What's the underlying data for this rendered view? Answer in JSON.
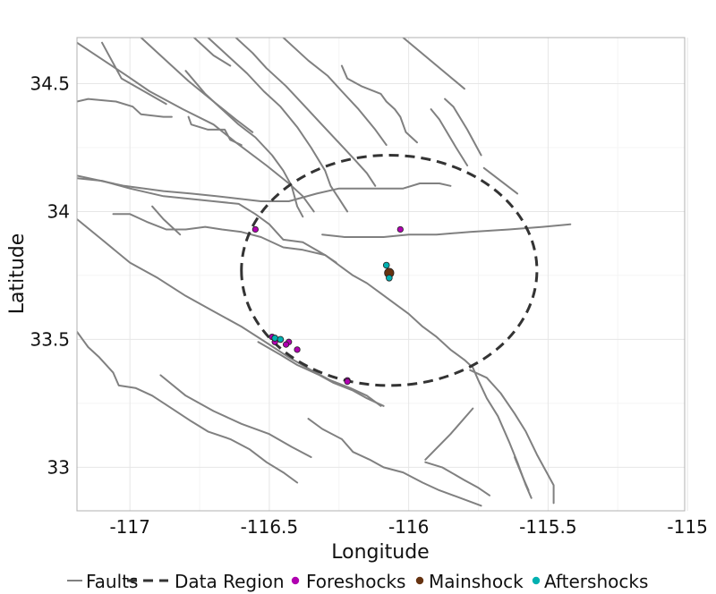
{
  "chart_data": {
    "type": "scatter",
    "title": "",
    "xlabel": "Longitude",
    "ylabel": "Latitude",
    "xlim": [
      -117.19,
      -115.01
    ],
    "ylim": [
      32.83,
      34.68
    ],
    "x_ticks": [
      -117,
      -116.5,
      -116,
      -115.5,
      -115
    ],
    "x_tick_labels": [
      "-117",
      "-116.5",
      "-116",
      "-115.5",
      "-115"
    ],
    "y_ticks": [
      33,
      33.5,
      34,
      34.5
    ],
    "y_tick_labels": [
      "33",
      "33.5",
      "34",
      "34.5"
    ],
    "grid": true,
    "legend_position": "bottom",
    "legend": [
      {
        "label": "Faults",
        "kind": "line",
        "color": "#808080"
      },
      {
        "label": "Data Region",
        "kind": "dashed",
        "color": "#333333"
      },
      {
        "label": "Foreshocks",
        "kind": "point",
        "color": "#b000b0"
      },
      {
        "label": "Mainshock",
        "kind": "point",
        "color": "#663311"
      },
      {
        "label": "Aftershocks",
        "kind": "point",
        "color": "#00b0b0"
      }
    ],
    "data_region": {
      "center": [
        -116.07,
        33.77
      ],
      "radius_lon": 0.53,
      "radius_lat": 0.45
    },
    "faults": [
      [
        [
          -117.19,
          34.66
        ],
        [
          -117.01,
          34.53
        ],
        [
          -116.93,
          34.47
        ],
        [
          -116.81,
          34.4
        ],
        [
          -116.7,
          34.34
        ],
        [
          -116.62,
          34.27
        ],
        [
          -116.51,
          34.18
        ],
        [
          -116.43,
          34.11
        ],
        [
          -116.38,
          34.06
        ],
        [
          -116.34,
          34.0
        ]
      ],
      [
        [
          -117.1,
          34.66
        ],
        [
          -117.03,
          34.52
        ],
        [
          -116.95,
          34.47
        ],
        [
          -116.87,
          34.42
        ]
      ],
      [
        [
          -117.19,
          34.43
        ],
        [
          -117.15,
          34.44
        ],
        [
          -117.05,
          34.43
        ],
        [
          -116.99,
          34.41
        ],
        [
          -116.96,
          34.38
        ],
        [
          -116.88,
          34.37
        ],
        [
          -116.85,
          34.37
        ]
      ],
      [
        [
          -116.96,
          34.68
        ],
        [
          -116.85,
          34.57
        ],
        [
          -116.79,
          34.51
        ],
        [
          -116.7,
          34.43
        ],
        [
          -116.62,
          34.36
        ],
        [
          -116.56,
          34.31
        ]
      ],
      [
        [
          -116.79,
          34.37
        ],
        [
          -116.78,
          34.34
        ],
        [
          -116.72,
          34.32
        ],
        [
          -116.7,
          34.32
        ],
        [
          -116.66,
          34.32
        ],
        [
          -116.64,
          34.28
        ],
        [
          -116.6,
          34.26
        ]
      ],
      [
        [
          -116.8,
          34.55
        ],
        [
          -116.73,
          34.46
        ],
        [
          -116.67,
          34.4
        ],
        [
          -116.61,
          34.34
        ],
        [
          -116.55,
          34.29
        ],
        [
          -116.49,
          34.22
        ],
        [
          -116.45,
          34.16
        ],
        [
          -116.42,
          34.1
        ],
        [
          -116.4,
          34.02
        ],
        [
          -116.38,
          33.98
        ]
      ],
      [
        [
          -116.77,
          34.68
        ],
        [
          -116.7,
          34.61
        ],
        [
          -116.64,
          34.57
        ]
      ],
      [
        [
          -116.72,
          34.68
        ],
        [
          -116.64,
          34.6
        ],
        [
          -116.58,
          34.54
        ],
        [
          -116.52,
          34.47
        ],
        [
          -116.46,
          34.41
        ],
        [
          -116.4,
          34.33
        ],
        [
          -116.35,
          34.25
        ],
        [
          -116.3,
          34.16
        ],
        [
          -116.28,
          34.1
        ],
        [
          -116.25,
          34.05
        ],
        [
          -116.22,
          34.0
        ]
      ],
      [
        [
          -116.62,
          34.68
        ],
        [
          -116.56,
          34.62
        ],
        [
          -116.51,
          34.56
        ],
        [
          -116.44,
          34.49
        ],
        [
          -116.38,
          34.42
        ],
        [
          -116.32,
          34.35
        ],
        [
          -116.26,
          34.28
        ],
        [
          -116.2,
          34.21
        ],
        [
          -116.15,
          34.15
        ],
        [
          -116.12,
          34.1
        ]
      ],
      [
        [
          -116.45,
          34.68
        ],
        [
          -116.4,
          34.63
        ],
        [
          -116.36,
          34.59
        ],
        [
          -116.29,
          34.53
        ],
        [
          -116.24,
          34.47
        ],
        [
          -116.18,
          34.4
        ],
        [
          -116.12,
          34.32
        ],
        [
          -116.08,
          34.26
        ]
      ],
      [
        [
          -116.24,
          34.57
        ],
        [
          -116.22,
          34.52
        ],
        [
          -116.17,
          34.49
        ],
        [
          -116.1,
          34.46
        ],
        [
          -116.08,
          34.43
        ],
        [
          -116.05,
          34.4
        ],
        [
          -116.03,
          34.37
        ],
        [
          -116.01,
          34.31
        ],
        [
          -115.97,
          34.27
        ]
      ],
      [
        [
          -116.02,
          34.68
        ],
        [
          -115.8,
          34.48
        ]
      ],
      [
        [
          -115.92,
          34.4
        ],
        [
          -115.89,
          34.36
        ],
        [
          -115.83,
          34.25
        ],
        [
          -115.79,
          34.18
        ]
      ],
      [
        [
          -115.87,
          34.44
        ],
        [
          -115.84,
          34.41
        ],
        [
          -115.79,
          34.32
        ],
        [
          -115.74,
          34.22
        ]
      ],
      [
        [
          -115.73,
          34.17
        ],
        [
          -115.61,
          34.07
        ]
      ],
      [
        [
          -117.19,
          34.14
        ],
        [
          -117.02,
          34.1
        ],
        [
          -116.88,
          34.08
        ],
        [
          -116.78,
          34.07
        ],
        [
          -116.69,
          34.06
        ],
        [
          -116.61,
          34.05
        ],
        [
          -116.53,
          34.04
        ],
        [
          -116.43,
          34.04
        ],
        [
          -116.33,
          34.07
        ],
        [
          -116.25,
          34.09
        ],
        [
          -116.17,
          34.09
        ],
        [
          -116.09,
          34.09
        ],
        [
          -116.02,
          34.09
        ],
        [
          -115.96,
          34.11
        ],
        [
          -115.89,
          34.11
        ],
        [
          -115.85,
          34.1
        ]
      ],
      [
        [
          -117.19,
          34.13
        ],
        [
          -117.1,
          34.12
        ],
        [
          -117.0,
          34.09
        ],
        [
          -116.88,
          34.06
        ],
        [
          -116.79,
          34.05
        ],
        [
          -116.7,
          34.04
        ],
        [
          -116.61,
          34.03
        ],
        [
          -116.55,
          33.99
        ],
        [
          -116.5,
          33.95
        ],
        [
          -116.45,
          33.89
        ],
        [
          -116.38,
          33.88
        ],
        [
          -116.3,
          33.83
        ],
        [
          -116.25,
          33.79
        ],
        [
          -116.2,
          33.75
        ],
        [
          -116.15,
          33.72
        ],
        [
          -116.1,
          33.68
        ],
        [
          -116.05,
          33.64
        ],
        [
          -116.0,
          33.6
        ],
        [
          -115.95,
          33.55
        ],
        [
          -115.9,
          33.51
        ],
        [
          -115.85,
          33.46
        ],
        [
          -115.8,
          33.42
        ],
        [
          -115.77,
          33.39
        ],
        [
          -115.75,
          33.34
        ],
        [
          -115.72,
          33.27
        ],
        [
          -115.68,
          33.2
        ],
        [
          -115.64,
          33.1
        ],
        [
          -115.61,
          33.02
        ],
        [
          -115.58,
          32.93
        ],
        [
          -115.56,
          32.88
        ]
      ],
      [
        [
          -117.19,
          33.97
        ],
        [
          -117.1,
          33.89
        ],
        [
          -117.0,
          33.8
        ],
        [
          -116.9,
          33.74
        ],
        [
          -116.8,
          33.67
        ],
        [
          -116.7,
          33.61
        ],
        [
          -116.6,
          33.55
        ],
        [
          -116.5,
          33.48
        ],
        [
          -116.43,
          33.43
        ],
        [
          -116.35,
          33.38
        ],
        [
          -116.28,
          33.34
        ],
        [
          -116.21,
          33.31
        ],
        [
          -116.15,
          33.28
        ],
        [
          -116.1,
          33.24
        ]
      ],
      [
        [
          -117.06,
          33.99
        ],
        [
          -117.0,
          33.99
        ],
        [
          -116.94,
          33.96
        ],
        [
          -116.87,
          33.93
        ],
        [
          -116.8,
          33.93
        ],
        [
          -116.73,
          33.94
        ],
        [
          -116.67,
          33.93
        ],
        [
          -116.6,
          33.92
        ],
        [
          -116.53,
          33.9
        ],
        [
          -116.45,
          33.86
        ],
        [
          -116.38,
          33.85
        ],
        [
          -116.3,
          33.83
        ],
        [
          -116.26,
          33.8
        ]
      ],
      [
        [
          -116.92,
          34.02
        ],
        [
          -116.88,
          33.97
        ],
        [
          -116.82,
          33.91
        ]
      ],
      [
        [
          -116.31,
          33.91
        ],
        [
          -116.23,
          33.9
        ],
        [
          -116.15,
          33.9
        ],
        [
          -116.09,
          33.9
        ],
        [
          -116.0,
          33.91
        ],
        [
          -115.9,
          33.91
        ],
        [
          -115.78,
          33.92
        ],
        [
          -115.64,
          33.93
        ],
        [
          -115.52,
          33.94
        ],
        [
          -115.42,
          33.95
        ]
      ],
      [
        [
          -117.19,
          33.53
        ],
        [
          -117.15,
          33.47
        ],
        [
          -117.11,
          33.43
        ],
        [
          -117.06,
          33.37
        ],
        [
          -117.04,
          33.32
        ],
        [
          -116.98,
          33.31
        ],
        [
          -116.92,
          33.28
        ],
        [
          -116.85,
          33.23
        ],
        [
          -116.78,
          33.18
        ],
        [
          -116.72,
          33.14
        ],
        [
          -116.64,
          33.11
        ],
        [
          -116.57,
          33.07
        ],
        [
          -116.51,
          33.02
        ],
        [
          -116.45,
          32.98
        ],
        [
          -116.4,
          32.94
        ]
      ],
      [
        [
          -116.89,
          33.36
        ],
        [
          -116.8,
          33.28
        ],
        [
          -116.7,
          33.22
        ],
        [
          -116.6,
          33.17
        ],
        [
          -116.5,
          33.13
        ],
        [
          -116.42,
          33.08
        ],
        [
          -116.35,
          33.04
        ]
      ],
      [
        [
          -116.54,
          33.49
        ],
        [
          -116.46,
          33.44
        ],
        [
          -116.4,
          33.4
        ],
        [
          -116.32,
          33.36
        ],
        [
          -116.27,
          33.33
        ],
        [
          -116.2,
          33.3
        ],
        [
          -116.15,
          33.27
        ],
        [
          -116.09,
          33.24
        ]
      ],
      [
        [
          -116.36,
          33.19
        ],
        [
          -116.31,
          33.15
        ],
        [
          -116.24,
          33.11
        ],
        [
          -116.2,
          33.06
        ],
        [
          -116.14,
          33.03
        ],
        [
          -116.09,
          33.0
        ],
        [
          -116.02,
          32.98
        ],
        [
          -115.95,
          32.94
        ],
        [
          -115.89,
          32.91
        ],
        [
          -115.84,
          32.89
        ],
        [
          -115.79,
          32.87
        ],
        [
          -115.74,
          32.85
        ]
      ],
      [
        [
          -115.94,
          33.02
        ],
        [
          -115.88,
          33.0
        ],
        [
          -115.8,
          32.95
        ],
        [
          -115.75,
          32.92
        ],
        [
          -115.71,
          32.89
        ]
      ],
      [
        [
          -115.94,
          33.03
        ],
        [
          -115.85,
          33.13
        ],
        [
          -115.77,
          33.23
        ]
      ],
      [
        [
          -115.78,
          33.38
        ],
        [
          -115.72,
          33.35
        ],
        [
          -115.67,
          33.29
        ],
        [
          -115.62,
          33.21
        ],
        [
          -115.58,
          33.14
        ],
        [
          -115.54,
          33.05
        ],
        [
          -115.5,
          32.97
        ],
        [
          -115.48,
          32.93
        ],
        [
          -115.48,
          32.86
        ]
      ],
      [
        [
          -115.62,
          33.04
        ],
        [
          -115.59,
          32.96
        ],
        [
          -115.57,
          32.91
        ]
      ]
    ],
    "series": [
      {
        "name": "Foreshocks",
        "color": "#b000b0",
        "points": [
          [
            -116.55,
            33.93
          ],
          [
            -116.03,
            33.93
          ],
          [
            -116.49,
            33.51
          ],
          [
            -116.48,
            33.49
          ],
          [
            -116.43,
            33.49
          ],
          [
            -116.44,
            33.48
          ],
          [
            -116.4,
            33.46
          ],
          [
            -116.22,
            33.34
          ],
          [
            -116.22,
            33.335
          ]
        ]
      },
      {
        "name": "Mainshock",
        "color": "#663311",
        "points": [
          [
            -116.07,
            33.76
          ]
        ]
      },
      {
        "name": "Aftershocks",
        "color": "#00b0b0",
        "points": [
          [
            -116.08,
            33.79
          ],
          [
            -116.07,
            33.74
          ],
          [
            -116.48,
            33.505
          ],
          [
            -116.46,
            33.5
          ]
        ]
      }
    ]
  }
}
